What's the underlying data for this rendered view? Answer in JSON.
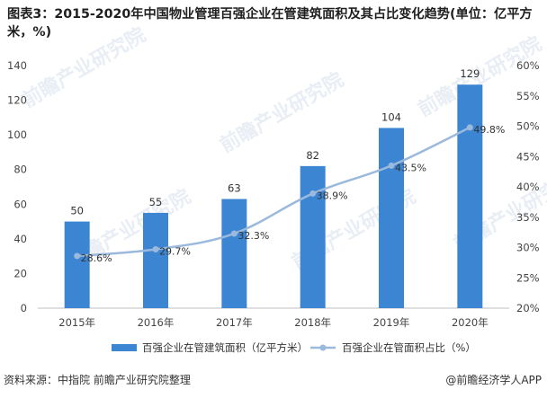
{
  "figure": {
    "title": "图表3：2015-2020年中国物业管理百强企业在管建筑面积及其占比变化趋势(单位：亿平方米，%)",
    "source": "资料来源：中指院 前瞻产业研究院整理",
    "credit": "@前瞻经济学人APP",
    "watermark": "前瞻产业研究院"
  },
  "chart_data": {
    "type": "bar",
    "categories": [
      "2015年",
      "2016年",
      "2017年",
      "2018年",
      "2019年",
      "2020年"
    ],
    "series": [
      {
        "name": "百强企业在管建筑面积（亿平方米）",
        "type": "bar",
        "axis": "left",
        "color": "#3c85d3",
        "values": [
          50,
          55,
          63,
          82,
          104,
          129
        ],
        "labels": [
          "50",
          "55",
          "63",
          "82",
          "104",
          "129"
        ]
      },
      {
        "name": "百强企业在管面积占比（%）",
        "type": "line",
        "axis": "right",
        "color": "#9ab9dd",
        "values": [
          28.6,
          29.7,
          32.3,
          38.9,
          43.5,
          49.8
        ],
        "labels": [
          "28.6%",
          "29.7%",
          "32.3%",
          "38.9%",
          "43.5%",
          "49.8%"
        ]
      }
    ],
    "left_axis": {
      "min": 0,
      "max": 140,
      "step": 20,
      "ticks": [
        "0",
        "20",
        "40",
        "60",
        "80",
        "100",
        "120",
        "140"
      ]
    },
    "right_axis": {
      "min": 20,
      "max": 60,
      "step": 5,
      "ticks": [
        "20%",
        "25%",
        "30%",
        "35%",
        "40%",
        "45%",
        "50%",
        "55%",
        "60%"
      ]
    },
    "grid": false,
    "legend": "bottom"
  }
}
